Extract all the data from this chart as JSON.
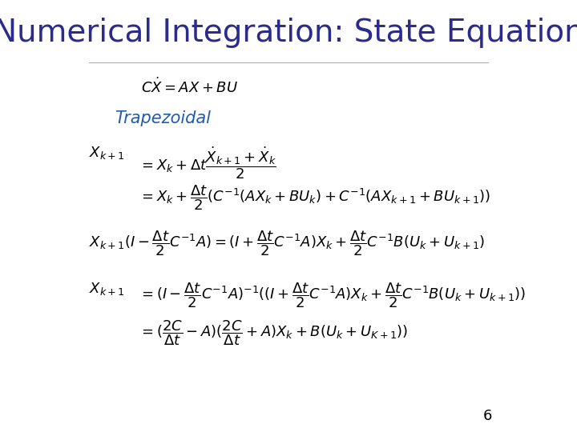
{
  "title": "Numerical Integration: State Equation",
  "title_color": "#2b2b8c",
  "title_fontsize": 28,
  "slide_number": "6",
  "background_color": "#ffffff",
  "text_color": "#000000",
  "trapezoidal_color": "#1e5cb3",
  "trapezoidal_label": "Trapezoidal"
}
